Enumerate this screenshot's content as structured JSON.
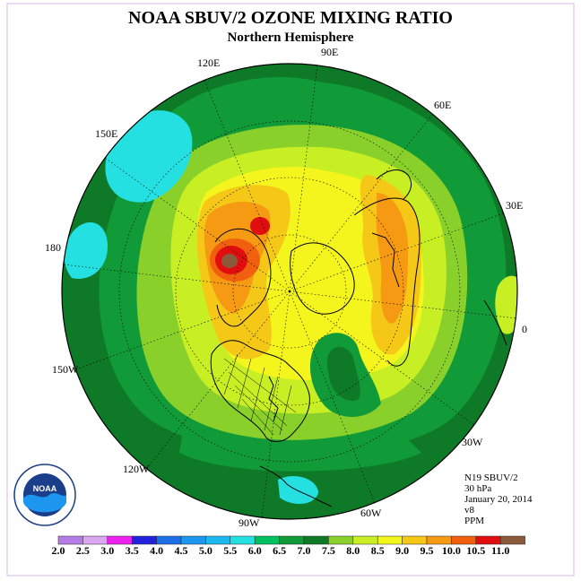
{
  "title": "NOAA SBUV/2 OZONE MIXING RATIO",
  "subtitle": "Northern Hemisphere",
  "longitudes": {
    "e90": "90E",
    "e120": "120E",
    "e60": "60E",
    "e150": "150E",
    "e30": "30E",
    "d180": "180",
    "d0": "0",
    "w150": "150W",
    "w30": "30W",
    "w120": "120W",
    "w60": "60W",
    "w90": "90W"
  },
  "info": {
    "satellite": "N19 SBUV/2",
    "level": "30 hPa",
    "date": "January 20, 2014",
    "version": "v8",
    "units": "PPM"
  },
  "logo": {
    "text": "NOAA",
    "ring_text": "NATIONAL OCEANIC AND ATMOSPHERIC ADMINISTRATION · U.S. DEPARTMENT OF COMMERCE"
  },
  "colorbar": {
    "labels": [
      "2.0",
      "2.5",
      "3.0",
      "3.5",
      "4.0",
      "4.5",
      "5.0",
      "5.5",
      "6.0",
      "6.5",
      "7.0",
      "7.5",
      "8.0",
      "8.5",
      "9.0",
      "9.5",
      "10.0",
      "10.5",
      "11.0"
    ],
    "colors": [
      "#b57ce6",
      "#d9a8f0",
      "#ee22ee",
      "#2222dd",
      "#1d6fe6",
      "#1c96ee",
      "#1cb8f0",
      "#25e0e0",
      "#00c060",
      "#109a38",
      "#0e7a28",
      "#8ad02a",
      "#c8ee24",
      "#f5f51e",
      "#f5c818",
      "#f59a12",
      "#f0600e",
      "#e00e0e",
      "#8a5a3a"
    ]
  }
}
